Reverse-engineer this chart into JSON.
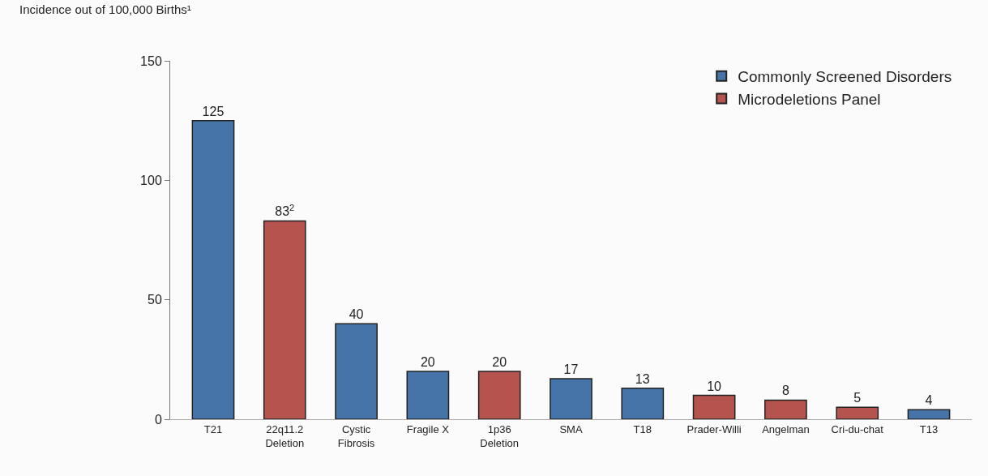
{
  "chart_data": {
    "type": "bar",
    "ylabel": "Incidence out of 100,000 Births¹",
    "categories": [
      "T21",
      "22q11.2\nDeletion",
      "Cystic\nFibrosis",
      "Fragile X",
      "1p36\nDeletion",
      "SMA",
      "T18",
      "Prader-Willi",
      "Angelman",
      "Cri-du-chat",
      "T13"
    ],
    "series": [
      {
        "name": "Commonly Screened Disorders",
        "color": "#4674a8",
        "values": [
          125,
          null,
          40,
          20,
          null,
          17,
          13,
          null,
          null,
          null,
          4
        ],
        "value_labels": [
          "125",
          null,
          "40",
          "20",
          null,
          "17",
          "13",
          null,
          null,
          null,
          "4"
        ]
      },
      {
        "name": "Microdeletions Panel",
        "color": "#b5534f",
        "values": [
          null,
          83,
          null,
          null,
          20,
          null,
          null,
          10,
          8,
          5,
          null
        ],
        "value_labels": [
          null,
          "83$^{2}$",
          null,
          null,
          "20",
          null,
          null,
          "10",
          "8",
          "5",
          null
        ]
      }
    ],
    "ylim": [
      0,
      150
    ],
    "yticks": [
      0,
      50,
      100,
      150
    ],
    "legend": "top right"
  }
}
